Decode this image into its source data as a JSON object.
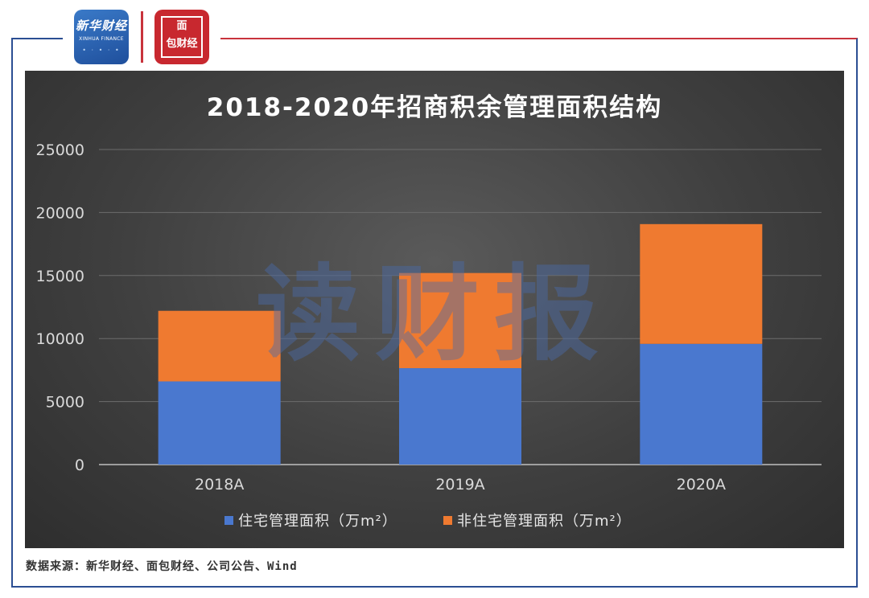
{
  "header": {
    "logo_xinhua_cn": "新华财经",
    "logo_xinhua_en": "XINHUA FINANCE",
    "logo_mianbao_top": "面",
    "logo_mianbao_bottom": "包财经"
  },
  "watermark": "读财报",
  "source": "数据来源：新华财经、面包财经、公司公告、Wind",
  "colors": {
    "residential": "#4a78cf",
    "non_residential": "#ef7a30",
    "background": "#3c3c3c",
    "frame_blue": "#2b4e93",
    "frame_red": "#c8333c"
  },
  "chart_data": {
    "type": "bar",
    "stacked": true,
    "title": "2018-2020年招商积余管理面积结构",
    "xlabel": "",
    "ylabel": "",
    "categories": [
      "2018A",
      "2019A",
      "2020A"
    ],
    "series": [
      {
        "name": "住宅管理面积（万m²）",
        "values": [
          6600,
          7650,
          9580
        ]
      },
      {
        "name": "非住宅管理面积（万m²）",
        "values": [
          5600,
          7550,
          9500
        ]
      }
    ],
    "ylim": [
      0,
      25000
    ],
    "yticks": [
      0,
      5000,
      10000,
      15000,
      20000,
      25000
    ],
    "grid": true,
    "legend": "bottom"
  }
}
